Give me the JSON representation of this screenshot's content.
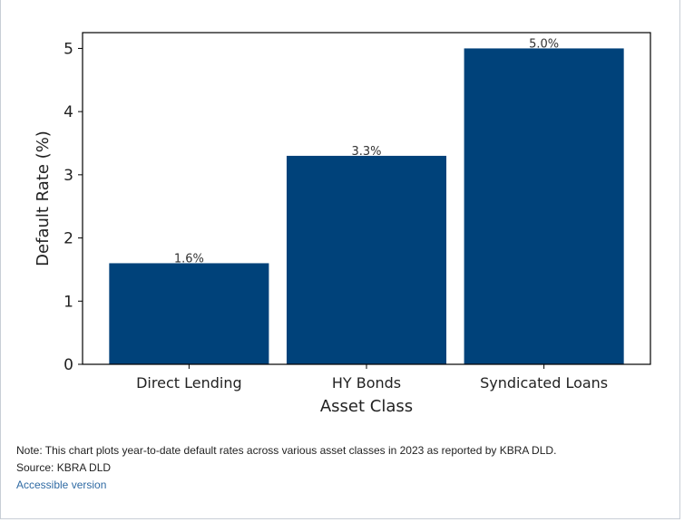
{
  "chart_data": {
    "type": "bar",
    "title": "",
    "xlabel": "Asset Class",
    "ylabel": "Default Rate (%)",
    "categories": [
      "Direct Lending",
      "HY Bonds",
      "Syndicated Loans"
    ],
    "values": [
      1.6,
      3.3,
      5.0
    ],
    "data_labels": [
      "1.6%",
      "3.3%",
      "5.0%"
    ],
    "ylim": [
      0,
      5.25
    ],
    "yticks": [
      0,
      1,
      2,
      3,
      4,
      5
    ],
    "grid": false,
    "bar_color": "#00427a"
  },
  "notes": {
    "note": "Note: This chart plots year-to-date default rates across various asset classes in 2023 as reported by KBRA DLD.",
    "source": "Source: KBRA DLD",
    "link": "Accessible version"
  }
}
